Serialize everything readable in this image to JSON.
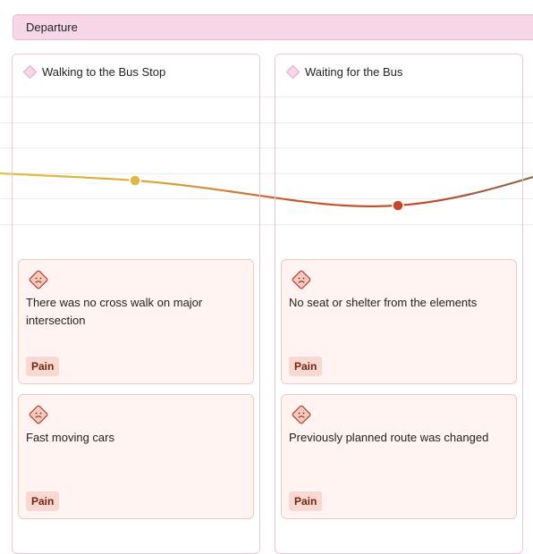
{
  "stage": {
    "title": "Departure"
  },
  "steps": [
    {
      "title": "Walking to the Bus Stop",
      "cards": [
        {
          "text": "There was no cross walk on major intersection",
          "tag": "Pain"
        },
        {
          "text": "Fast moving cars",
          "tag": "Pain"
        }
      ]
    },
    {
      "title": "Waiting for the Bus",
      "cards": [
        {
          "text": "No seat or shelter from the elements",
          "tag": "Pain"
        },
        {
          "text": "Previously planned route was changed",
          "tag": "Pain"
        }
      ]
    }
  ]
}
